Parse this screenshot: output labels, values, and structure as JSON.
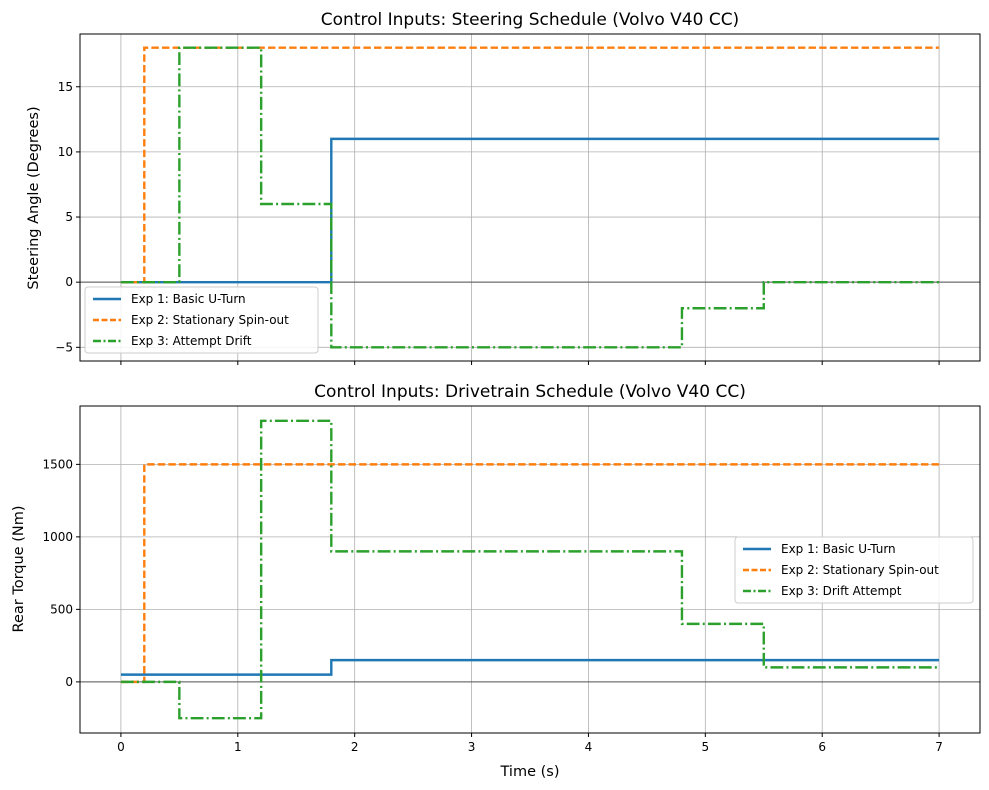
{
  "colors": {
    "exp1": "#1f77b4",
    "exp2": "#ff7f0e",
    "exp3": "#2ca02c",
    "grid": "#b0b0b0",
    "zero_line": "#555555"
  },
  "chart_data": [
    {
      "type": "line",
      "title": "Control Inputs: Steering Schedule (Volvo V40 CC)",
      "xlabel": "",
      "ylabel": "Steering Angle (Degrees)",
      "xlim": [
        -0.35,
        7.35
      ],
      "ylim": [
        -6.05,
        19.05
      ],
      "xticks": [
        0,
        1,
        2,
        3,
        4,
        5,
        6,
        7
      ],
      "yticks": [
        -5,
        0,
        5,
        10,
        15
      ],
      "ytick_labels": [
        "−5",
        "0",
        "5",
        "10",
        "15"
      ],
      "show_x_tick_labels": false,
      "grid": true,
      "legend_position": "lower-left",
      "series": [
        {
          "name": "Exp 1: Basic U-Turn",
          "style": "solid",
          "color_key": "exp1",
          "points": [
            [
              0,
              0
            ],
            [
              1.8,
              0
            ],
            [
              1.8,
              11
            ],
            [
              7,
              11
            ]
          ]
        },
        {
          "name": "Exp 2: Stationary Spin-out",
          "style": "dashed",
          "color_key": "exp2",
          "points": [
            [
              0,
              0
            ],
            [
              0.2,
              0
            ],
            [
              0.2,
              18
            ],
            [
              7,
              18
            ]
          ]
        },
        {
          "name": "Exp 3: Attempt Drift",
          "style": "dashdot",
          "color_key": "exp3",
          "points": [
            [
              0,
              0
            ],
            [
              0.5,
              0
            ],
            [
              0.5,
              18
            ],
            [
              1.2,
              18
            ],
            [
              1.2,
              6
            ],
            [
              1.8,
              6
            ],
            [
              1.8,
              -5
            ],
            [
              4.8,
              -5
            ],
            [
              4.8,
              -2
            ],
            [
              5.5,
              -2
            ],
            [
              5.5,
              0
            ],
            [
              7,
              0
            ]
          ]
        }
      ]
    },
    {
      "type": "line",
      "title": "Control Inputs: Drivetrain Schedule (Volvo V40 CC)",
      "xlabel": "Time (s)",
      "ylabel": "Rear Torque (Nm)",
      "xlim": [
        -0.35,
        7.35
      ],
      "ylim": [
        -352.5,
        1902.5
      ],
      "xticks": [
        0,
        1,
        2,
        3,
        4,
        5,
        6,
        7
      ],
      "xtick_labels": [
        "0",
        "1",
        "2",
        "3",
        "4",
        "5",
        "6",
        "7"
      ],
      "yticks": [
        0,
        500,
        1000,
        1500
      ],
      "ytick_labels": [
        "0",
        "500",
        "1000",
        "1500"
      ],
      "show_x_tick_labels": true,
      "grid": true,
      "legend_position": "center-right",
      "series": [
        {
          "name": "Exp 1: Basic U-Turn",
          "style": "solid",
          "color_key": "exp1",
          "points": [
            [
              0,
              50
            ],
            [
              1.8,
              50
            ],
            [
              1.8,
              150
            ],
            [
              7,
              150
            ]
          ]
        },
        {
          "name": "Exp 2: Stationary Spin-out",
          "style": "dashed",
          "color_key": "exp2",
          "points": [
            [
              0,
              0
            ],
            [
              0.2,
              0
            ],
            [
              0.2,
              1500
            ],
            [
              7,
              1500
            ]
          ]
        },
        {
          "name": "Exp 3: Drift Attempt",
          "style": "dashdot",
          "color_key": "exp3",
          "points": [
            [
              0,
              0
            ],
            [
              0.5,
              0
            ],
            [
              0.5,
              -250
            ],
            [
              1.2,
              -250
            ],
            [
              1.2,
              1800
            ],
            [
              1.8,
              1800
            ],
            [
              1.8,
              900
            ],
            [
              4.8,
              900
            ],
            [
              4.8,
              400
            ],
            [
              5.5,
              400
            ],
            [
              5.5,
              100
            ],
            [
              7,
              100
            ]
          ]
        }
      ]
    }
  ]
}
